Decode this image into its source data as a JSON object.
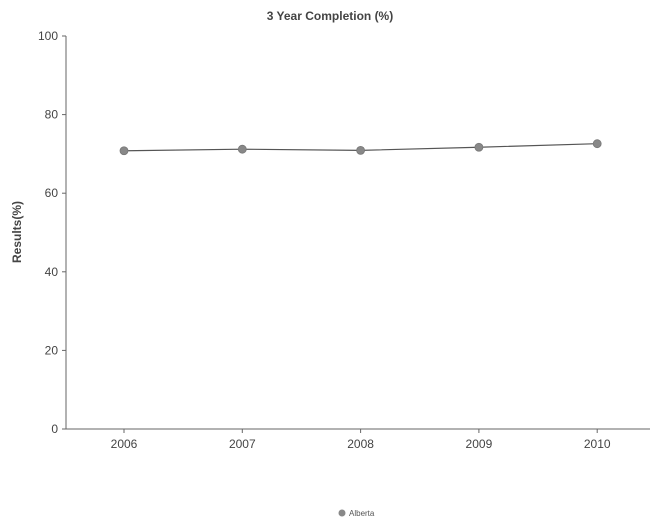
{
  "chart_data": {
    "type": "line",
    "title": "3 Year Completion (%)",
    "xlabel": "",
    "ylabel": "Results(%)",
    "categories": [
      "2006",
      "2007",
      "2008",
      "2009",
      "2010"
    ],
    "series": [
      {
        "name": "Alberta",
        "values": [
          70.8,
          71.2,
          70.9,
          71.7,
          72.6
        ]
      }
    ],
    "ylim": [
      0,
      100
    ],
    "yticks": [
      "0",
      "20",
      "40",
      "60",
      "80",
      "100"
    ],
    "grid": false,
    "legend": "bottom-center",
    "colors": {
      "line": "#555555",
      "marker": "#888888",
      "axis": "#666666"
    }
  }
}
